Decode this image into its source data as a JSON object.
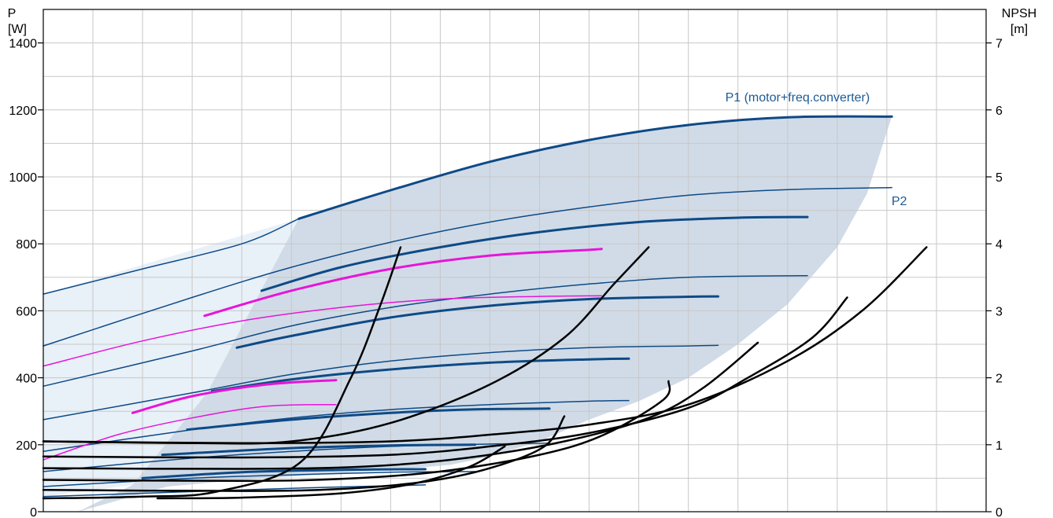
{
  "chart_data": {
    "type": "line",
    "title": "",
    "left_axis": {
      "title_line1": "P",
      "title_line2": "[W]",
      "ylim": [
        0,
        1500
      ],
      "ticks": [
        0,
        200,
        400,
        600,
        800,
        1000,
        1200,
        1400
      ]
    },
    "right_axis": {
      "title_line1": "NPSH",
      "title_line2": "[m]",
      "ylim": [
        0,
        7.5
      ],
      "ticks": [
        0,
        1,
        2,
        3,
        4,
        5,
        6,
        7
      ]
    },
    "x_axis": {
      "xlim": [
        0,
        19
      ],
      "grid_lines": 19,
      "tick_labels": []
    },
    "grid": true,
    "colors": {
      "blue": "#0e4a86",
      "magenta": "#e615d8",
      "black": "#000000",
      "band": "#d0dbe7",
      "band_light": "#e8f0f8",
      "grid": "#c8c8c8"
    },
    "annotations": [
      {
        "text": "P1 (motor+freq.converter)",
        "x": 15.2,
        "y": 1225
      },
      {
        "text": "P2",
        "x": 17.25,
        "y": 915
      }
    ],
    "series": [
      {
        "name": "P1 (motor+freq.converter)",
        "color": "blue",
        "width": 3,
        "points": [
          [
            5.15,
            875
          ],
          [
            7,
            960
          ],
          [
            9,
            1045
          ],
          [
            11,
            1110
          ],
          [
            13,
            1155
          ],
          [
            15,
            1178
          ],
          [
            17.1,
            1180
          ]
        ]
      },
      {
        "color": "blue",
        "width": 1.5,
        "points": [
          [
            0,
            650
          ],
          [
            2,
            725
          ],
          [
            4,
            800
          ],
          [
            5.15,
            875
          ]
        ]
      },
      {
        "name": "P2",
        "color": "blue",
        "width": 1.5,
        "points": [
          [
            0,
            495
          ],
          [
            3,
            640
          ],
          [
            5,
            730
          ],
          [
            7,
            805
          ],
          [
            9,
            865
          ],
          [
            11,
            910
          ],
          [
            13,
            945
          ],
          [
            15,
            962
          ],
          [
            17.1,
            968
          ]
        ]
      },
      {
        "color": "blue",
        "width": 3,
        "points": [
          [
            4.4,
            660
          ],
          [
            6,
            730
          ],
          [
            8,
            790
          ],
          [
            10,
            835
          ],
          [
            12,
            865
          ],
          [
            14,
            878
          ],
          [
            15.4,
            880
          ]
        ]
      },
      {
        "color": "blue",
        "width": 1.5,
        "points": [
          [
            0,
            375
          ],
          [
            3,
            480
          ],
          [
            5,
            555
          ],
          [
            7,
            610
          ],
          [
            9,
            650
          ],
          [
            11,
            680
          ],
          [
            13,
            700
          ],
          [
            15.4,
            705
          ]
        ]
      },
      {
        "color": "blue",
        "width": 3,
        "points": [
          [
            3.9,
            490
          ],
          [
            5,
            525
          ],
          [
            7,
            580
          ],
          [
            9,
            615
          ],
          [
            11,
            635
          ],
          [
            13,
            642
          ],
          [
            13.6,
            643
          ]
        ]
      },
      {
        "color": "blue",
        "width": 1.5,
        "points": [
          [
            0,
            275
          ],
          [
            3,
            355
          ],
          [
            5,
            410
          ],
          [
            7,
            450
          ],
          [
            9,
            475
          ],
          [
            11,
            490
          ],
          [
            13,
            495
          ],
          [
            13.6,
            497
          ]
        ]
      },
      {
        "color": "blue",
        "width": 3,
        "points": [
          [
            3.4,
            360
          ],
          [
            5,
            395
          ],
          [
            7,
            425
          ],
          [
            9,
            445
          ],
          [
            11,
            455
          ],
          [
            11.8,
            457
          ]
        ]
      },
      {
        "color": "blue",
        "width": 1.5,
        "points": [
          [
            0,
            180
          ],
          [
            3,
            245
          ],
          [
            5,
            280
          ],
          [
            7,
            305
          ],
          [
            9,
            320
          ],
          [
            11,
            330
          ],
          [
            11.8,
            332
          ]
        ]
      },
      {
        "color": "blue",
        "width": 3,
        "points": [
          [
            2.9,
            245
          ],
          [
            5,
            275
          ],
          [
            7,
            295
          ],
          [
            8.5,
            305
          ],
          [
            10.2,
            308
          ]
        ]
      },
      {
        "color": "blue",
        "width": 1.5,
        "points": [
          [
            0,
            120
          ],
          [
            3,
            160
          ],
          [
            5,
            180
          ],
          [
            7,
            195
          ],
          [
            9,
            202
          ],
          [
            10.2,
            205
          ]
        ]
      },
      {
        "color": "blue",
        "width": 3,
        "points": [
          [
            2.4,
            170
          ],
          [
            5,
            190
          ],
          [
            7,
            198
          ],
          [
            8.7,
            200
          ]
        ]
      },
      {
        "color": "blue",
        "width": 1.5,
        "points": [
          [
            0,
            75
          ],
          [
            3,
            100
          ],
          [
            5,
            110
          ],
          [
            7,
            118
          ],
          [
            8.7,
            120
          ]
        ]
      },
      {
        "color": "blue",
        "width": 3,
        "points": [
          [
            2.0,
            100
          ],
          [
            4,
            118
          ],
          [
            6,
            125
          ],
          [
            7.7,
            127
          ]
        ]
      },
      {
        "color": "blue",
        "width": 1.5,
        "points": [
          [
            0,
            45
          ],
          [
            3,
            60
          ],
          [
            5,
            70
          ],
          [
            7.7,
            80
          ]
        ]
      },
      {
        "color": "magenta",
        "width": 3,
        "points": [
          [
            3.25,
            585
          ],
          [
            5,
            660
          ],
          [
            7,
            725
          ],
          [
            9,
            765
          ],
          [
            11,
            782
          ],
          [
            11.25,
            785
          ]
        ]
      },
      {
        "color": "magenta",
        "width": 1.5,
        "points": [
          [
            0,
            435
          ],
          [
            2,
            510
          ],
          [
            4,
            570
          ],
          [
            6,
            610
          ],
          [
            8,
            635
          ],
          [
            10,
            643
          ],
          [
            11.25,
            645
          ]
        ]
      },
      {
        "color": "magenta",
        "width": 3,
        "points": [
          [
            1.8,
            295
          ],
          [
            3,
            345
          ],
          [
            4.5,
            380
          ],
          [
            5.9,
            393
          ]
        ]
      },
      {
        "color": "magenta",
        "width": 1.5,
        "points": [
          [
            0,
            155
          ],
          [
            1.5,
            230
          ],
          [
            3,
            280
          ],
          [
            4.5,
            315
          ],
          [
            5.9,
            320
          ]
        ]
      },
      {
        "color": "black",
        "width": 2.5,
        "points": [
          [
            0,
            40
          ],
          [
            2,
            45
          ],
          [
            3.5,
            60
          ],
          [
            5.2,
            150
          ],
          [
            6.2,
            400
          ],
          [
            6.8,
            620
          ],
          [
            7.2,
            790
          ]
        ]
      },
      {
        "color": "black",
        "width": 2.5,
        "points": [
          [
            0,
            210
          ],
          [
            3,
            205
          ],
          [
            5,
            210
          ],
          [
            7,
            265
          ],
          [
            9,
            380
          ],
          [
            10.5,
            520
          ],
          [
            11.5,
            680
          ],
          [
            12.2,
            790
          ]
        ]
      },
      {
        "color": "black",
        "width": 2.5,
        "points": [
          [
            0,
            210
          ],
          [
            4,
            205
          ],
          [
            7,
            210
          ],
          [
            9,
            230
          ],
          [
            11,
            260
          ],
          [
            13,
            320
          ],
          [
            15,
            450
          ],
          [
            16.5,
            600
          ],
          [
            17.8,
            790
          ]
        ]
      },
      {
        "color": "black",
        "width": 2.5,
        "points": [
          [
            0,
            165
          ],
          [
            4,
            162
          ],
          [
            7,
            170
          ],
          [
            9,
            195
          ],
          [
            11,
            235
          ],
          [
            13,
            310
          ],
          [
            14.2,
            400
          ],
          [
            15.5,
            520
          ],
          [
            16.2,
            640
          ]
        ]
      },
      {
        "color": "black",
        "width": 2.5,
        "points": [
          [
            0,
            130
          ],
          [
            4,
            128
          ],
          [
            6.5,
            135
          ],
          [
            8.5,
            160
          ],
          [
            10.5,
            210
          ],
          [
            12.2,
            280
          ],
          [
            13.3,
            370
          ],
          [
            14.4,
            505
          ]
        ]
      },
      {
        "color": "black",
        "width": 2.5,
        "points": [
          [
            0,
            95
          ],
          [
            4,
            92
          ],
          [
            6,
            98
          ],
          [
            8,
            120
          ],
          [
            10,
            170
          ],
          [
            11.3,
            230
          ],
          [
            12.5,
            335
          ],
          [
            12.6,
            390
          ]
        ]
      },
      {
        "color": "black",
        "width": 2.5,
        "points": [
          [
            0,
            65
          ],
          [
            4,
            62
          ],
          [
            6,
            68
          ],
          [
            7.7,
            90
          ],
          [
            9,
            130
          ],
          [
            10.1,
            195
          ],
          [
            10.5,
            285
          ]
        ]
      },
      {
        "color": "black",
        "width": 2.5,
        "points": [
          [
            2.3,
            40
          ],
          [
            4,
            42
          ],
          [
            6,
            55
          ],
          [
            7.5,
            85
          ],
          [
            8.6,
            135
          ],
          [
            9.3,
            195
          ]
        ]
      }
    ],
    "bands": [
      {
        "name": "light-region",
        "color": "band_light",
        "points": [
          [
            0,
            650
          ],
          [
            5.15,
            875
          ],
          [
            3.3,
            355
          ],
          [
            1.8,
            80
          ],
          [
            0,
            45
          ]
        ]
      },
      {
        "name": "operating-region",
        "color": "band",
        "points": [
          [
            5.15,
            875
          ],
          [
            7,
            960
          ],
          [
            9,
            1045
          ],
          [
            11,
            1110
          ],
          [
            13,
            1155
          ],
          [
            15,
            1178
          ],
          [
            17.1,
            1180
          ],
          [
            16.6,
            950
          ],
          [
            16,
            790
          ],
          [
            15,
            620
          ],
          [
            14,
            500
          ],
          [
            13,
            400
          ],
          [
            12,
            330
          ],
          [
            11,
            275
          ],
          [
            10,
            210
          ],
          [
            9,
            165
          ],
          [
            8.2,
            140
          ],
          [
            7,
            125
          ],
          [
            5.5,
            110
          ],
          [
            4,
            95
          ],
          [
            2.5,
            75
          ],
          [
            0.7,
            0
          ],
          [
            1.8,
            80
          ],
          [
            3.3,
            355
          ]
        ]
      }
    ]
  }
}
